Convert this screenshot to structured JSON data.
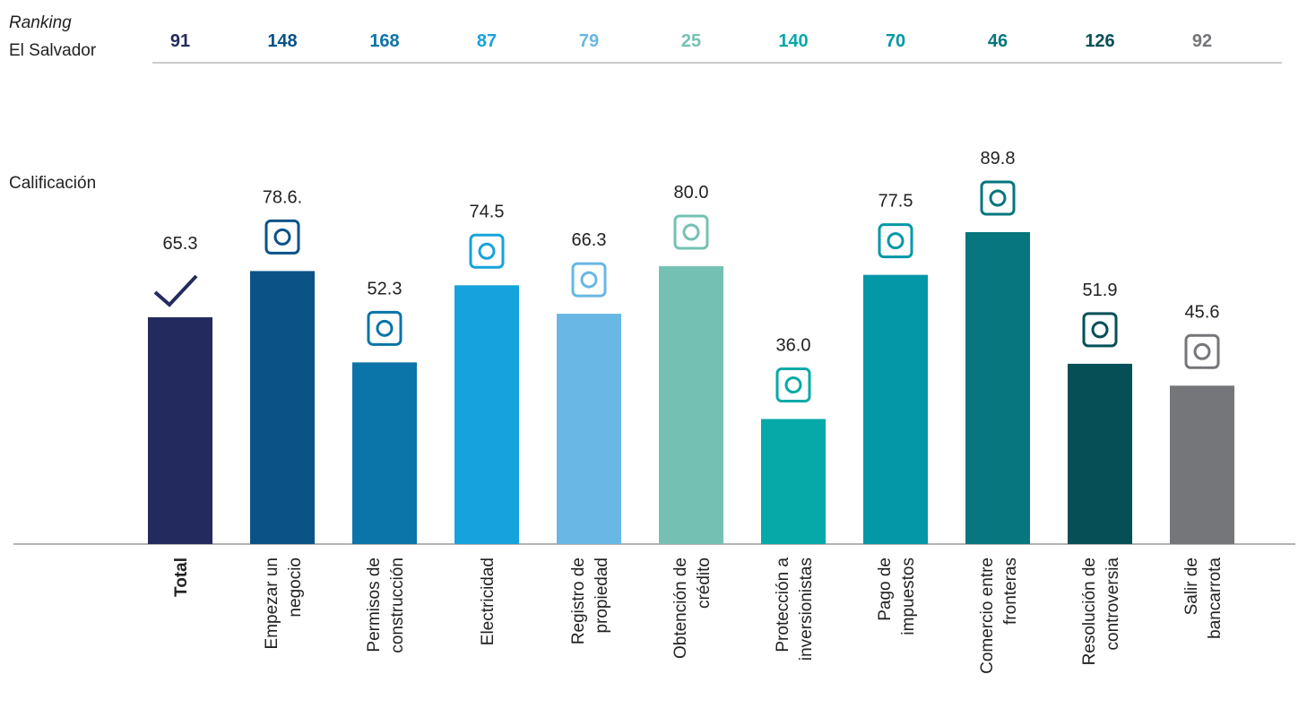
{
  "chart_data": {
    "type": "bar",
    "ranking_label": "Ranking",
    "ranking_country": "El Salvador",
    "score_label": "Calificación",
    "categories": [
      [
        "Total"
      ],
      [
        "Empezar un",
        "negocio"
      ],
      [
        "Permisos de",
        "construcción"
      ],
      [
        "Electricidad"
      ],
      [
        "Registro de",
        "propiedad"
      ],
      [
        "Obtención de",
        "crédito"
      ],
      [
        "Protección a",
        "inversionistas"
      ],
      [
        "Pago de",
        "impuestos"
      ],
      [
        "Comercio entre",
        "fronteras"
      ],
      [
        "Resolución de",
        "controversia"
      ],
      [
        "Salir de",
        "bancarrota"
      ]
    ],
    "values": [
      65.3,
      78.6,
      52.3,
      74.5,
      66.3,
      80.0,
      36.0,
      77.5,
      89.8,
      51.9,
      45.6
    ],
    "value_labels": [
      "65.3",
      "78.6.",
      "52.3",
      "74.5",
      "66.3",
      "80.0",
      "36.0",
      "77.5",
      "89.8",
      "51.9",
      "45.6"
    ],
    "rankings": [
      91,
      148,
      168,
      87,
      79,
      25,
      140,
      70,
      46,
      126,
      92
    ],
    "colors": [
      "#232b5e",
      "#0a5387",
      "#0b74a8",
      "#16a2dc",
      "#68b7e4",
      "#74c1b3",
      "#06a9a8",
      "#0397a8",
      "#07767e",
      "#064f57",
      "#747679"
    ]
  }
}
